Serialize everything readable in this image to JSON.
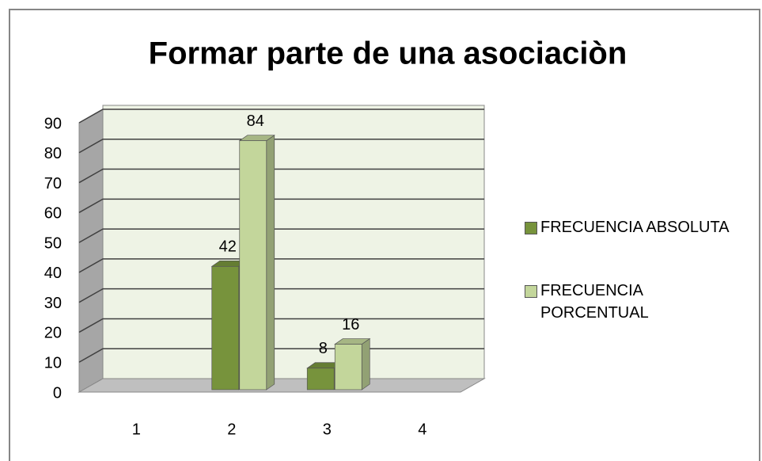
{
  "chart_data": {
    "type": "bar3d",
    "title": "Formar parte de una asociaciòn",
    "categories": [
      "1",
      "2",
      "3",
      "4"
    ],
    "series": [
      {
        "name": "FRECUENCIA ABSOLUTA",
        "color": "#77933c",
        "values": [
          null,
          42,
          8,
          null
        ]
      },
      {
        "name": "FRECUENCIA PORCENTUAL",
        "color": "#c3d69b",
        "values": [
          null,
          84,
          16,
          null
        ]
      }
    ],
    "ylim": [
      0,
      90
    ],
    "yticks": [
      0,
      10,
      20,
      30,
      40,
      50,
      60,
      70,
      80,
      90
    ],
    "grid": true,
    "legend": "right"
  }
}
